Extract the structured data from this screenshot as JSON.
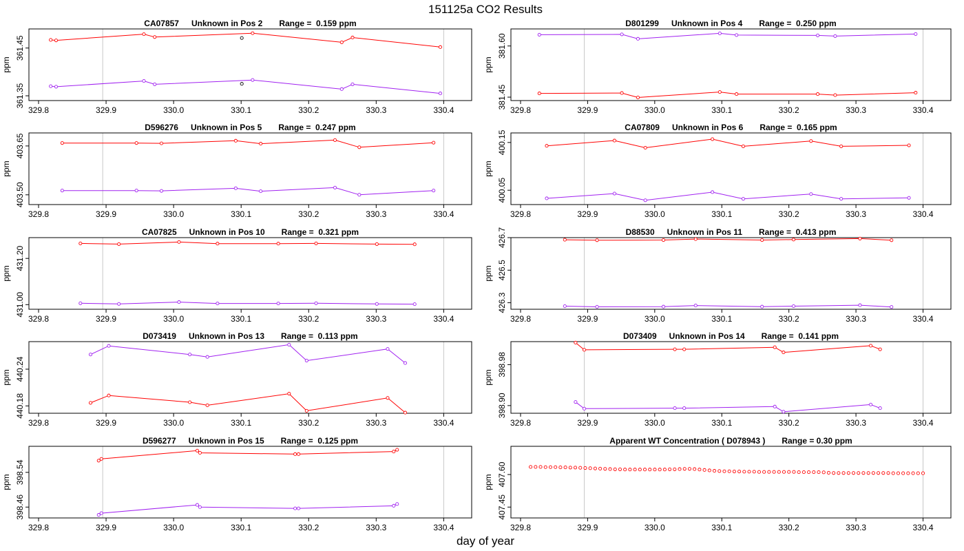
{
  "figure": {
    "title": "151125a  CO2 Results",
    "xlabel": "day of year",
    "ylabel": "ppm",
    "colors": {
      "series_a": "#ff0000",
      "series_b": "#a020f0",
      "frame": "#000000",
      "vline": "#c8c8c8"
    }
  },
  "chart_data": [
    {
      "type": "line",
      "title_id": "CA07857",
      "title_pos": "Unknown in Pos 2",
      "title_range": "Range =  0.159 ppm",
      "xlim": [
        329.8,
        330.42
      ],
      "ylim": [
        361.34,
        361.49
      ],
      "yticks": [
        361.35,
        361.45
      ],
      "ytick_labels": [
        "361.35",
        "361.45"
      ],
      "xticks": [
        329.8,
        329.9,
        330.0,
        330.1,
        330.2,
        330.3,
        330.4
      ],
      "xtick_labels": [
        "329.8",
        "329.9",
        "330.0",
        "330.1",
        "330.2",
        "330.3",
        "330.4"
      ],
      "vlines": [
        329.895,
        330.4
      ],
      "series": [
        {
          "name": "a",
          "color": "#ff0000",
          "x": [
            329.818,
            329.826,
            329.956,
            329.972,
            330.117,
            330.249,
            330.265,
            330.395
          ],
          "y": [
            361.467,
            361.466,
            361.479,
            361.473,
            361.481,
            361.462,
            361.472,
            361.452
          ]
        },
        {
          "name": "b",
          "color": "#a020f0",
          "x": [
            329.818,
            329.826,
            329.956,
            329.972,
            330.117,
            330.249,
            330.265,
            330.395
          ],
          "y": [
            361.37,
            361.369,
            361.381,
            361.374,
            361.383,
            361.364,
            361.374,
            361.355
          ]
        },
        {
          "name": "outlier",
          "color": "#000000",
          "points_only": true,
          "x": [
            330.101,
            330.101
          ],
          "y": [
            361.471,
            361.375
          ]
        }
      ]
    },
    {
      "type": "line",
      "title_id": "D801299",
      "title_pos": "Unknown in Pos 4",
      "title_range": "Range =  0.250 ppm",
      "xlim": [
        329.8,
        330.42
      ],
      "ylim": [
        381.44,
        381.65
      ],
      "yticks": [
        381.45,
        381.6
      ],
      "ytick_labels": [
        "381.45",
        "381.60"
      ],
      "xticks": [
        329.8,
        329.9,
        330.0,
        330.1,
        330.2,
        330.3,
        330.4
      ],
      "xtick_labels": [
        "329.8",
        "329.9",
        "330.0",
        "330.1",
        "330.2",
        "330.3",
        "330.4"
      ],
      "vlines": [
        329.895,
        330.4
      ],
      "series": [
        {
          "name": "b",
          "color": "#a020f0",
          "x": [
            329.828,
            329.951,
            329.975,
            330.097,
            330.122,
            330.243,
            330.269,
            330.389
          ],
          "y": [
            381.633,
            381.634,
            381.621,
            381.637,
            381.632,
            381.631,
            381.629,
            381.635
          ]
        },
        {
          "name": "a",
          "color": "#ff0000",
          "x": [
            329.828,
            329.951,
            329.975,
            330.097,
            330.122,
            330.243,
            330.269,
            330.389
          ],
          "y": [
            381.461,
            381.462,
            381.449,
            381.465,
            381.459,
            381.459,
            381.456,
            381.463
          ]
        }
      ]
    },
    {
      "type": "line",
      "title_id": "D596276",
      "title_pos": "Unknown in Pos 5",
      "title_range": "Range =  0.247 ppm",
      "xlim": [
        329.8,
        330.42
      ],
      "ylim": [
        403.47,
        403.69
      ],
      "yticks": [
        403.5,
        403.65
      ],
      "ytick_labels": [
        "403.50",
        "403.65"
      ],
      "xticks": [
        329.8,
        329.9,
        330.0,
        330.1,
        330.2,
        330.3,
        330.4
      ],
      "xtick_labels": [
        "329.8",
        "329.9",
        "330.0",
        "330.1",
        "330.2",
        "330.3",
        "330.4"
      ],
      "vlines": [
        329.895,
        330.4
      ],
      "series": [
        {
          "name": "a",
          "color": "#ff0000",
          "x": [
            329.835,
            329.945,
            329.982,
            330.092,
            330.129,
            330.239,
            330.275,
            330.385
          ],
          "y": [
            403.659,
            403.659,
            403.658,
            403.666,
            403.657,
            403.668,
            403.646,
            403.66
          ]
        },
        {
          "name": "b",
          "color": "#a020f0",
          "x": [
            329.835,
            329.945,
            329.982,
            330.092,
            330.129,
            330.239,
            330.275,
            330.385
          ],
          "y": [
            403.513,
            403.513,
            403.512,
            403.52,
            403.511,
            403.522,
            403.5,
            403.513
          ]
        }
      ]
    },
    {
      "type": "line",
      "title_id": "CA07809",
      "title_pos": "Unknown in Pos 6",
      "title_range": "Range =  0.165 ppm",
      "xlim": [
        329.8,
        330.42
      ],
      "ylim": [
        400.02,
        400.17
      ],
      "yticks": [
        400.05,
        400.15
      ],
      "ytick_labels": [
        "400.05",
        "400.15"
      ],
      "xticks": [
        329.8,
        329.9,
        330.0,
        330.1,
        330.2,
        330.3,
        330.4
      ],
      "xtick_labels": [
        "329.8",
        "329.9",
        "330.0",
        "330.1",
        "330.2",
        "330.3",
        "330.4"
      ],
      "vlines": [
        329.895,
        330.4
      ],
      "series": [
        {
          "name": "a",
          "color": "#ff0000",
          "x": [
            329.839,
            329.94,
            329.986,
            330.086,
            330.132,
            330.233,
            330.278,
            330.379
          ],
          "y": [
            400.143,
            400.154,
            400.139,
            400.157,
            400.142,
            400.153,
            400.142,
            400.144
          ]
        },
        {
          "name": "b",
          "color": "#a020f0",
          "x": [
            329.839,
            329.94,
            329.986,
            330.086,
            330.132,
            330.233,
            330.278,
            330.379
          ],
          "y": [
            400.033,
            400.043,
            400.029,
            400.046,
            400.032,
            400.042,
            400.032,
            400.034
          ]
        }
      ]
    },
    {
      "type": "line",
      "title_id": "CA07825",
      "title_pos": "Unknown in Pos 10",
      "title_range": "Range =  0.321 ppm",
      "xlim": [
        329.8,
        330.42
      ],
      "ylim": [
        430.98,
        431.29
      ],
      "yticks": [
        431.0,
        431.2
      ],
      "ytick_labels": [
        "431.00",
        "431.20"
      ],
      "xticks": [
        329.8,
        329.9,
        330.0,
        330.1,
        330.2,
        330.3,
        330.4
      ],
      "xtick_labels": [
        "329.8",
        "329.9",
        "330.0",
        "330.1",
        "330.2",
        "330.3",
        "330.4"
      ],
      "vlines": [
        329.895,
        330.4
      ],
      "series": [
        {
          "name": "a",
          "color": "#ff0000",
          "x": [
            329.862,
            329.919,
            330.008,
            330.065,
            330.155,
            330.211,
            330.301,
            330.357
          ],
          "y": [
            431.265,
            431.262,
            431.271,
            431.264,
            431.264,
            431.265,
            431.262,
            431.261
          ]
        },
        {
          "name": "b",
          "color": "#a020f0",
          "x": [
            329.862,
            329.919,
            330.008,
            330.065,
            330.155,
            330.211,
            330.301,
            330.357
          ],
          "y": [
            431.006,
            431.003,
            431.011,
            431.005,
            431.005,
            431.006,
            431.003,
            431.002
          ]
        }
      ]
    },
    {
      "type": "line",
      "title_id": "D88530",
      "title_pos": "Unknown in Pos 11",
      "title_range": "Range =  0.413 ppm",
      "xlim": [
        329.8,
        330.42
      ],
      "ylim": [
        426.26,
        426.7
      ],
      "yticks": [
        426.3,
        426.5,
        426.7
      ],
      "ytick_labels": [
        "426.3",
        "426.5",
        "426.7"
      ],
      "xticks": [
        329.8,
        329.9,
        330.0,
        330.1,
        330.2,
        330.3,
        330.4
      ],
      "xtick_labels": [
        "329.8",
        "329.9",
        "330.0",
        "330.1",
        "330.2",
        "330.3",
        "330.4"
      ],
      "vlines": [
        329.895,
        330.4
      ],
      "series": [
        {
          "name": "a",
          "color": "#ff0000",
          "x": [
            329.866,
            329.914,
            330.013,
            330.061,
            330.16,
            330.207,
            330.306,
            330.353
          ],
          "y": [
            426.687,
            426.684,
            426.685,
            426.691,
            426.685,
            426.688,
            426.694,
            426.684
          ]
        },
        {
          "name": "b",
          "color": "#a020f0",
          "x": [
            329.866,
            329.914,
            330.013,
            330.061,
            330.16,
            330.207,
            330.306,
            330.353
          ],
          "y": [
            426.279,
            426.275,
            426.276,
            426.283,
            426.276,
            426.279,
            426.285,
            426.274
          ]
        }
      ]
    },
    {
      "type": "line",
      "title_id": "D073419",
      "title_pos": "Unknown in Pos 13",
      "title_range": "Range =  0.113 ppm",
      "xlim": [
        329.8,
        330.42
      ],
      "ylim": [
        440.168,
        440.285
      ],
      "yticks": [
        440.18,
        440.24
      ],
      "ytick_labels": [
        "440.18",
        "440.24"
      ],
      "xticks": [
        329.8,
        329.9,
        330.0,
        330.1,
        330.2,
        330.3,
        330.4
      ],
      "xtick_labels": [
        "329.8",
        "329.9",
        "330.0",
        "330.1",
        "330.2",
        "330.3",
        "330.4"
      ],
      "vlines": [
        329.895,
        330.4
      ],
      "series": [
        {
          "name": "b",
          "color": "#a020f0",
          "x": [
            329.877,
            329.904,
            330.024,
            330.05,
            330.171,
            330.197,
            330.317,
            330.343
          ],
          "y": [
            440.264,
            440.278,
            440.264,
            440.26,
            440.28,
            440.254,
            440.273,
            440.25
          ]
        },
        {
          "name": "a",
          "color": "#ff0000",
          "x": [
            329.877,
            329.904,
            330.024,
            330.05,
            330.171,
            330.197,
            330.317,
            330.343
          ],
          "y": [
            440.185,
            440.197,
            440.186,
            440.181,
            440.2,
            440.172,
            440.193,
            440.169
          ]
        }
      ]
    },
    {
      "type": "line",
      "title_id": "D073409",
      "title_pos": "Unknown in Pos 14",
      "title_range": "Range =  0.141 ppm",
      "xlim": [
        329.8,
        330.42
      ],
      "ylim": [
        398.885,
        399.025
      ],
      "yticks": [
        398.9,
        398.98
      ],
      "ytick_labels": [
        "398.90",
        "398.98"
      ],
      "xticks": [
        329.8,
        329.9,
        330.0,
        330.1,
        330.2,
        330.3,
        330.4
      ],
      "xtick_labels": [
        "329.8",
        "329.9",
        "330.0",
        "330.1",
        "330.2",
        "330.3",
        "330.4"
      ],
      "vlines": [
        329.895,
        330.4
      ],
      "series": [
        {
          "name": "a",
          "color": "#ff0000",
          "x": [
            329.882,
            329.895,
            330.03,
            330.044,
            330.179,
            330.192,
            330.322,
            330.336
          ],
          "y": [
            399.023,
            399.009,
            399.01,
            399.01,
            399.014,
            399.004,
            399.017,
            399.01
          ]
        },
        {
          "name": "b",
          "color": "#a020f0",
          "x": [
            329.882,
            329.895,
            330.03,
            330.044,
            330.179,
            330.192,
            330.322,
            330.336
          ],
          "y": [
            398.907,
            398.894,
            398.895,
            398.895,
            398.898,
            398.888,
            398.902,
            398.895
          ]
        }
      ]
    },
    {
      "type": "line",
      "title_id": "D596277",
      "title_pos": "Unknown in Pos 15",
      "title_range": "Range =  0.125 ppm",
      "xlim": [
        329.8,
        330.42
      ],
      "ylim": [
        398.435,
        398.6
      ],
      "yticks": [
        398.46,
        398.54
      ],
      "ytick_labels": [
        "398.46",
        "398.54"
      ],
      "xticks": [
        329.8,
        329.9,
        330.0,
        330.1,
        330.2,
        330.3,
        330.4
      ],
      "xtick_labels": [
        "329.8",
        "329.9",
        "330.0",
        "330.1",
        "330.2",
        "330.3",
        "330.4"
      ],
      "vlines": [
        329.895,
        330.4
      ],
      "series": [
        {
          "name": "a",
          "color": "#ff0000",
          "x": [
            329.889,
            329.893,
            330.035,
            330.039,
            330.18,
            330.185,
            330.326,
            330.331
          ],
          "y": [
            398.567,
            398.571,
            398.59,
            398.585,
            398.582,
            398.582,
            398.588,
            398.592
          ]
        },
        {
          "name": "b",
          "color": "#a020f0",
          "x": [
            329.889,
            329.893,
            330.035,
            330.039,
            330.18,
            330.185,
            330.326,
            330.331
          ],
          "y": [
            398.442,
            398.446,
            398.465,
            398.46,
            398.457,
            398.457,
            398.463,
            398.467
          ]
        }
      ]
    },
    {
      "type": "scatter",
      "title_id": "Apparent WT Concentration ( D078943 )",
      "title_pos": "",
      "title_range": "Range = 0.30 ppm",
      "xlim": [
        329.8,
        330.42
      ],
      "ylim": [
        407.4,
        407.73
      ],
      "yticks": [
        407.45,
        407.6
      ],
      "ytick_labels": [
        "407.45",
        "407.60"
      ],
      "xticks": [
        329.8,
        329.9,
        330.0,
        330.1,
        330.2,
        330.3,
        330.4
      ],
      "xtick_labels": [
        "329.8",
        "329.9",
        "330.0",
        "330.1",
        "330.2",
        "330.3",
        "330.4"
      ],
      "vlines": [
        329.895,
        330.4
      ],
      "series": [
        {
          "name": "wt",
          "color": "#ff0000",
          "points_only": true,
          "x_start": 329.815,
          "x_end": 330.4,
          "count": 80,
          "y": [
            407.635,
            407.635,
            407.635,
            407.634,
            407.634,
            407.634,
            407.633,
            407.633,
            407.632,
            407.632,
            407.631,
            407.63,
            407.629,
            407.628,
            407.627,
            407.626,
            407.625,
            407.624,
            407.624,
            407.623,
            407.623,
            407.623,
            407.623,
            407.623,
            407.623,
            407.623,
            407.623,
            407.623,
            407.624,
            407.624,
            407.625,
            407.626,
            407.626,
            407.625,
            407.623,
            407.621,
            407.619,
            407.617,
            407.616,
            407.615,
            407.615,
            407.614,
            407.614,
            407.613,
            407.613,
            407.613,
            407.612,
            407.612,
            407.612,
            407.612,
            407.612,
            407.612,
            407.612,
            407.612,
            407.611,
            407.611,
            407.611,
            407.611,
            407.611,
            407.61,
            407.608,
            407.607,
            407.607,
            407.607,
            407.607,
            407.607,
            407.607,
            407.607,
            407.607,
            407.607,
            407.607,
            407.607,
            407.607,
            407.606,
            407.606,
            407.606,
            407.606,
            407.606,
            407.606,
            407.606
          ]
        }
      ]
    }
  ]
}
